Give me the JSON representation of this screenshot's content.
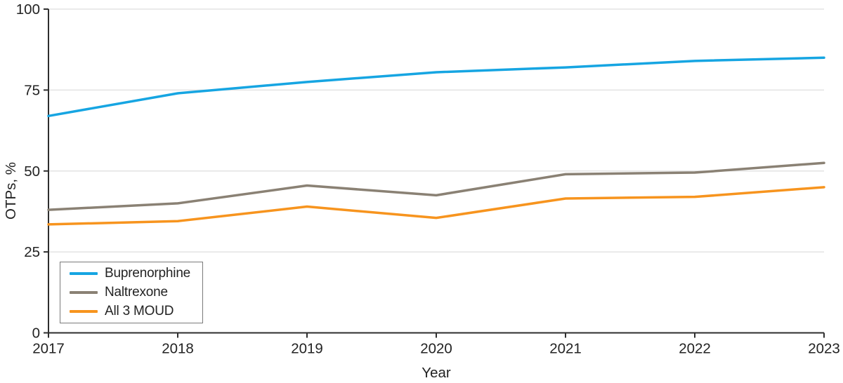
{
  "figure": {
    "x_axis_title": "Year",
    "y_axis_title": "OTPs, %"
  },
  "colors": {
    "axis": "#2e2e2e",
    "gridline": "#e3e3e3",
    "text": "#232323",
    "background": "#ffffff",
    "legend_border": "#7a7a7a"
  },
  "chart_data": {
    "type": "line",
    "title": "",
    "xlabel": "Year",
    "ylabel": "OTPs, %",
    "x": [
      2017,
      2018,
      2019,
      2020,
      2021,
      2022,
      2023
    ],
    "x_tick_labels": [
      "2017",
      "2018",
      "2019",
      "2020",
      "2021",
      "2022",
      "2023"
    ],
    "ylim": [
      0,
      100
    ],
    "yticks": [
      0,
      25,
      50,
      75,
      100
    ],
    "y_tick_labels": [
      "0",
      "25",
      "50",
      "75",
      "100"
    ],
    "grid": true,
    "legend_position": "bottom-left",
    "series": [
      {
        "name": "Buprenorphine",
        "color": "#16a5e2",
        "values": [
          67,
          74,
          77.5,
          80.5,
          82,
          84,
          85
        ]
      },
      {
        "name": "Naltrexone",
        "color": "#8a8174",
        "values": [
          38,
          40,
          45.5,
          42.5,
          49,
          49.5,
          52.5
        ]
      },
      {
        "name": "All 3 MOUD",
        "color": "#f7941e",
        "values": [
          33.5,
          34.5,
          39,
          35.5,
          41.5,
          42,
          45
        ]
      }
    ]
  }
}
